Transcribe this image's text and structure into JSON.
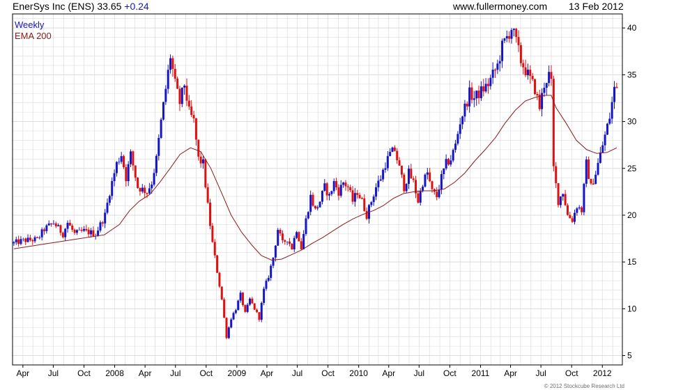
{
  "header": {
    "symbol": "EnerSys Inc (ENS) 33.65",
    "change": "+0.24",
    "site": "www.fullermoney.com",
    "date": "13 Feb 2012"
  },
  "legend": {
    "weekly": "Weekly",
    "ema": "EMA 200"
  },
  "copyright": "© 2012 Stockcube Research Ltd",
  "colors": {
    "up": "#1515c8",
    "down": "#e01010",
    "ema": "#8b1a1a",
    "grid": "#dcdcdc",
    "axis": "#000000"
  },
  "chart_data": {
    "type": "line",
    "ylim": [
      4,
      41.5
    ],
    "xlim": [
      "2007-03-01",
      "2012-03-01"
    ],
    "y_ticks": [
      5,
      10,
      15,
      20,
      25,
      30,
      35,
      40
    ],
    "x_ticks": [
      {
        "label": "Apr",
        "date": "2007-04-01"
      },
      {
        "label": "Jul",
        "date": "2007-07-01"
      },
      {
        "label": "Oct",
        "date": "2007-10-01"
      },
      {
        "label": "2008",
        "date": "2008-01-01"
      },
      {
        "label": "Apr",
        "date": "2008-04-01"
      },
      {
        "label": "Jul",
        "date": "2008-07-01"
      },
      {
        "label": "Oct",
        "date": "2008-10-01"
      },
      {
        "label": "2009",
        "date": "2009-01-01"
      },
      {
        "label": "Apr",
        "date": "2009-04-01"
      },
      {
        "label": "Jul",
        "date": "2009-07-01"
      },
      {
        "label": "Oct",
        "date": "2009-10-01"
      },
      {
        "label": "2010",
        "date": "2010-01-01"
      },
      {
        "label": "Apr",
        "date": "2010-04-01"
      },
      {
        "label": "Jul",
        "date": "2010-07-01"
      },
      {
        "label": "Oct",
        "date": "2010-10-01"
      },
      {
        "label": "2011",
        "date": "2011-01-01"
      },
      {
        "label": "Apr",
        "date": "2011-04-01"
      },
      {
        "label": "Jul",
        "date": "2011-07-01"
      },
      {
        "label": "Oct",
        "date": "2011-10-01"
      },
      {
        "label": "2012",
        "date": "2012-01-01"
      }
    ],
    "price_series": {
      "name": "Weekly",
      "points": [
        [
          "2007-03-05",
          17
        ],
        [
          "2007-04-02",
          17.3
        ],
        [
          "2007-05-14",
          17.4
        ],
        [
          "2007-06-04",
          18.5
        ],
        [
          "2007-07-02",
          19.2
        ],
        [
          "2007-07-30",
          18
        ],
        [
          "2007-08-13",
          19.2
        ],
        [
          "2007-09-03",
          18
        ],
        [
          "2007-10-01",
          18.3
        ],
        [
          "2007-11-05",
          18
        ],
        [
          "2007-12-03",
          20
        ],
        [
          "2007-12-17",
          22.5
        ],
        [
          "2008-01-07",
          25.5
        ],
        [
          "2008-01-21",
          26.5
        ],
        [
          "2008-02-04",
          24
        ],
        [
          "2008-02-18",
          26.5
        ],
        [
          "2008-03-10",
          23
        ],
        [
          "2008-04-07",
          22.5
        ],
        [
          "2008-04-21",
          23.5
        ],
        [
          "2008-05-05",
          26
        ],
        [
          "2008-05-19",
          30
        ],
        [
          "2008-06-02",
          33.5
        ],
        [
          "2008-06-16",
          37
        ],
        [
          "2008-06-30",
          34
        ],
        [
          "2008-07-14",
          32
        ],
        [
          "2008-07-28",
          34
        ],
        [
          "2008-08-11",
          31
        ],
        [
          "2008-08-25",
          30
        ],
        [
          "2008-09-08",
          26
        ],
        [
          "2008-09-22",
          25.5
        ],
        [
          "2008-10-06",
          21
        ],
        [
          "2008-10-20",
          17
        ],
        [
          "2008-11-03",
          14
        ],
        [
          "2008-11-17",
          11
        ],
        [
          "2008-12-01",
          7
        ],
        [
          "2008-12-15",
          9
        ],
        [
          "2008-12-29",
          10
        ],
        [
          "2009-01-12",
          11.5
        ],
        [
          "2009-01-26",
          9.5
        ],
        [
          "2009-02-09",
          11
        ],
        [
          "2009-02-23",
          10
        ],
        [
          "2009-03-09",
          9
        ],
        [
          "2009-03-23",
          12
        ],
        [
          "2009-04-06",
          13.5
        ],
        [
          "2009-04-20",
          15.5
        ],
        [
          "2009-05-04",
          18.5
        ],
        [
          "2009-05-18",
          17
        ],
        [
          "2009-06-01",
          17.5
        ],
        [
          "2009-06-15",
          16.5
        ],
        [
          "2009-06-29",
          18.5
        ],
        [
          "2009-07-13",
          16.5
        ],
        [
          "2009-07-27",
          19.5
        ],
        [
          "2009-08-10",
          22
        ],
        [
          "2009-08-24",
          20.5
        ],
        [
          "2009-09-07",
          21.5
        ],
        [
          "2009-09-21",
          23
        ],
        [
          "2009-10-05",
          22
        ],
        [
          "2009-10-19",
          23.5
        ],
        [
          "2009-11-02",
          22.5
        ],
        [
          "2009-11-16",
          23.5
        ],
        [
          "2009-11-30",
          23
        ],
        [
          "2009-12-14",
          21.5
        ],
        [
          "2009-12-28",
          22.5
        ],
        [
          "2010-01-11",
          21.5
        ],
        [
          "2010-01-25",
          20
        ],
        [
          "2010-02-08",
          21.5
        ],
        [
          "2010-02-22",
          23
        ],
        [
          "2010-03-08",
          24
        ],
        [
          "2010-03-22",
          25.5
        ],
        [
          "2010-04-05",
          26.5
        ],
        [
          "2010-04-19",
          27
        ],
        [
          "2010-05-03",
          25
        ],
        [
          "2010-05-17",
          23
        ],
        [
          "2010-05-31",
          24.5
        ],
        [
          "2010-06-14",
          23.5
        ],
        [
          "2010-06-28",
          21.5
        ],
        [
          "2010-07-12",
          23.5
        ],
        [
          "2010-07-26",
          24.5
        ],
        [
          "2010-08-09",
          22.5
        ],
        [
          "2010-08-23",
          22
        ],
        [
          "2010-09-06",
          24
        ],
        [
          "2010-09-20",
          25.5
        ],
        [
          "2010-10-04",
          26
        ],
        [
          "2010-10-18",
          27.5
        ],
        [
          "2010-11-01",
          30
        ],
        [
          "2010-11-15",
          31.5
        ],
        [
          "2010-11-29",
          33
        ],
        [
          "2010-12-13",
          32.5
        ],
        [
          "2010-12-27",
          33
        ],
        [
          "2011-01-10",
          33.5
        ],
        [
          "2011-01-24",
          34
        ],
        [
          "2011-02-07",
          35
        ],
        [
          "2011-02-21",
          36
        ],
        [
          "2011-03-07",
          38
        ],
        [
          "2011-03-21",
          39
        ],
        [
          "2011-04-04",
          40
        ],
        [
          "2011-04-18",
          38.5
        ],
        [
          "2011-05-02",
          36.5
        ],
        [
          "2011-05-16",
          35.5
        ],
        [
          "2011-05-30",
          34.5
        ],
        [
          "2011-06-13",
          33.5
        ],
        [
          "2011-06-27",
          31.5
        ],
        [
          "2011-07-11",
          34
        ],
        [
          "2011-07-25",
          35
        ],
        [
          "2011-08-01",
          34
        ],
        [
          "2011-08-08",
          25
        ],
        [
          "2011-08-22",
          21.5
        ],
        [
          "2011-09-05",
          22.5
        ],
        [
          "2011-09-19",
          20
        ],
        [
          "2011-10-03",
          19.5
        ],
        [
          "2011-10-17",
          21
        ],
        [
          "2011-10-31",
          20.5
        ],
        [
          "2011-11-14",
          25.5
        ],
        [
          "2011-11-28",
          23
        ],
        [
          "2011-12-12",
          24.5
        ],
        [
          "2011-12-26",
          26.5
        ],
        [
          "2012-01-09",
          28.5
        ],
        [
          "2012-01-23",
          30.5
        ],
        [
          "2012-02-06",
          33.5
        ],
        [
          "2012-02-13",
          33.65
        ]
      ]
    },
    "ema_series": {
      "name": "EMA 200",
      "points": [
        [
          "2007-03-05",
          16.4
        ],
        [
          "2007-06-01",
          16.9
        ],
        [
          "2007-09-01",
          17.4
        ],
        [
          "2007-12-01",
          17.9
        ],
        [
          "2008-01-15",
          19
        ],
        [
          "2008-02-15",
          20.5
        ],
        [
          "2008-03-15",
          21.5
        ],
        [
          "2008-04-15",
          22.2
        ],
        [
          "2008-05-15",
          23.5
        ],
        [
          "2008-06-15",
          25
        ],
        [
          "2008-07-15",
          26.5
        ],
        [
          "2008-08-15",
          27.2
        ],
        [
          "2008-09-15",
          26.8
        ],
        [
          "2008-10-15",
          25
        ],
        [
          "2008-11-15",
          22.5
        ],
        [
          "2008-12-15",
          20
        ],
        [
          "2009-01-15",
          18.2
        ],
        [
          "2009-02-15",
          16.8
        ],
        [
          "2009-03-15",
          15.7
        ],
        [
          "2009-04-15",
          15.2
        ],
        [
          "2009-05-15",
          15.3
        ],
        [
          "2009-06-15",
          15.8
        ],
        [
          "2009-07-15",
          16.3
        ],
        [
          "2009-08-15",
          17
        ],
        [
          "2009-09-15",
          17.6
        ],
        [
          "2009-10-15",
          18.3
        ],
        [
          "2009-11-15",
          19
        ],
        [
          "2009-12-15",
          19.6
        ],
        [
          "2010-01-15",
          20.1
        ],
        [
          "2010-02-15",
          20.5
        ],
        [
          "2010-03-15",
          21
        ],
        [
          "2010-04-15",
          21.8
        ],
        [
          "2010-05-15",
          22.3
        ],
        [
          "2010-06-15",
          22.5
        ],
        [
          "2010-07-15",
          22.6
        ],
        [
          "2010-08-15",
          22.6
        ],
        [
          "2010-09-15",
          22.8
        ],
        [
          "2010-10-15",
          23.5
        ],
        [
          "2010-11-15",
          24.5
        ],
        [
          "2010-12-15",
          25.8
        ],
        [
          "2011-01-15",
          27
        ],
        [
          "2011-02-15",
          28.3
        ],
        [
          "2011-03-15",
          29.8
        ],
        [
          "2011-04-15",
          31.2
        ],
        [
          "2011-05-15",
          32.2
        ],
        [
          "2011-06-15",
          32.6
        ],
        [
          "2011-07-15",
          32.8
        ],
        [
          "2011-08-01",
          32.8
        ],
        [
          "2011-08-15",
          31.5
        ],
        [
          "2011-09-15",
          29.8
        ],
        [
          "2011-10-15",
          28
        ],
        [
          "2011-11-15",
          27
        ],
        [
          "2011-12-15",
          26.6
        ],
        [
          "2012-01-15",
          26.7
        ],
        [
          "2012-02-13",
          27.2
        ]
      ]
    }
  }
}
